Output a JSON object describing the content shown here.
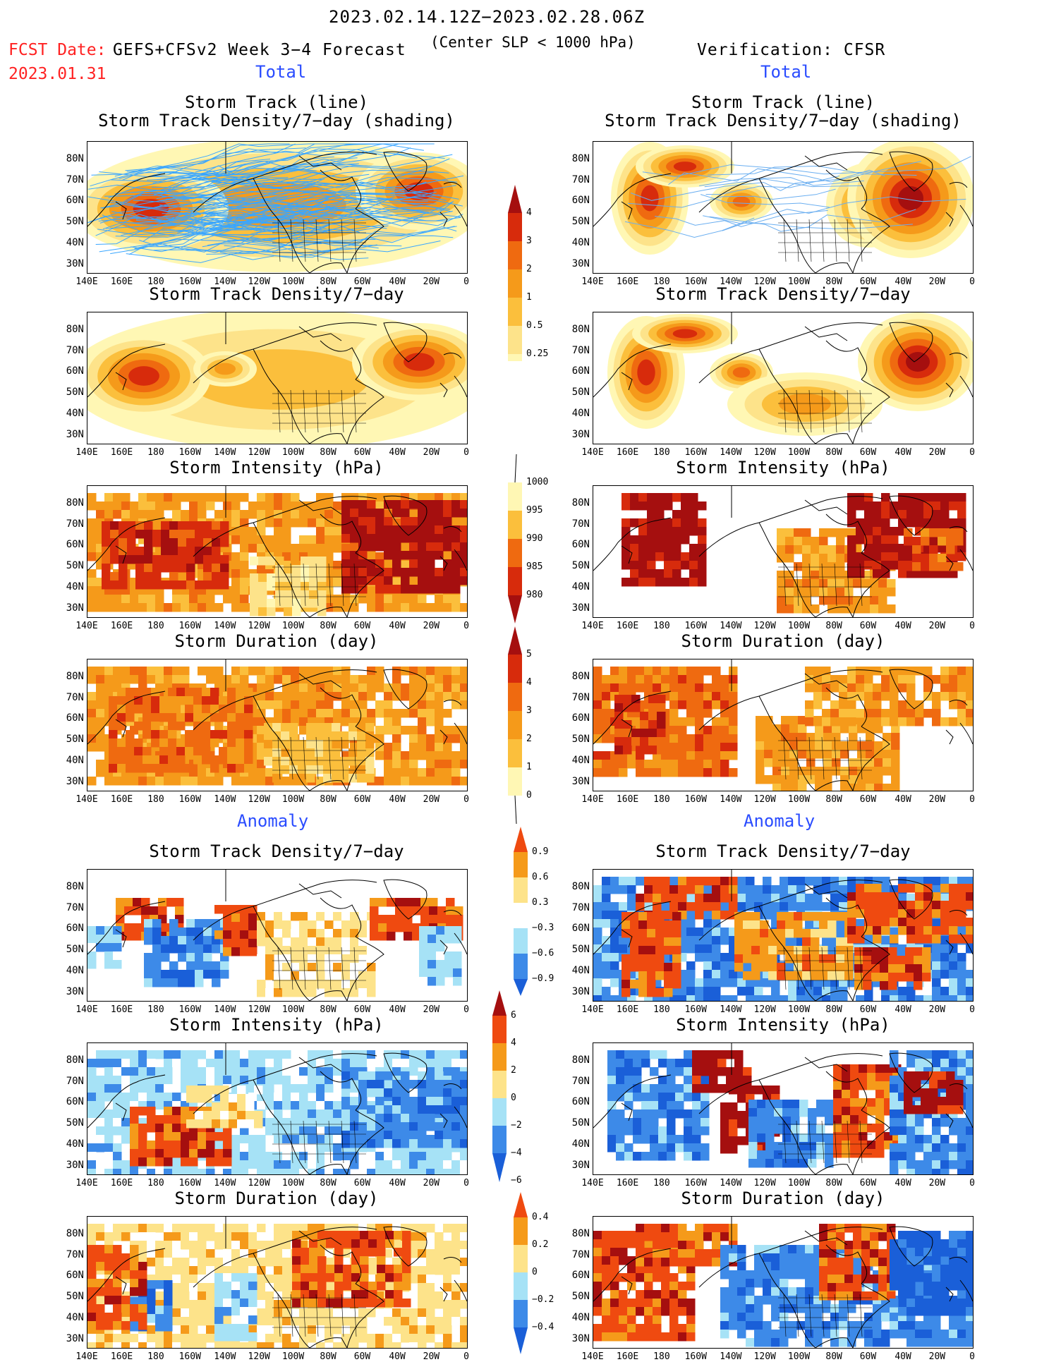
{
  "header": {
    "date_range": "2023.02.14.12Z−2023.02.28.06Z",
    "subtitle": "(Center SLP < 1000 hPa)",
    "fcst_label": "FCST Date:",
    "fcst_date": "2023.01.31",
    "left_title": "GEFS+CFSv2 Week 3−4 Forecast",
    "right_title": "Verification: CFSR"
  },
  "sections": {
    "total": "Total",
    "anomaly": "Anomaly"
  },
  "panel_titles": {
    "p1_line1": "Storm Track (line)",
    "p1_line2": "Storm Track Density/7−day (shading)",
    "p2": "Storm Track Density/7−day",
    "p3": "Storm Intensity (hPa)",
    "p4": "Storm Duration (day)",
    "a1": "Storm Track Density/7−day",
    "a2": "Storm Intensity (hPa)",
    "a3": "Storm Duration (day)"
  },
  "axes": {
    "lat_labels": [
      "80N",
      "70N",
      "60N",
      "50N",
      "40N",
      "30N"
    ],
    "lon_labels": [
      "140E",
      "160E",
      "180",
      "160W",
      "140W",
      "120W",
      "100W",
      "80W",
      "60W",
      "40W",
      "20W",
      "0"
    ]
  },
  "colorbars": {
    "density": [
      "4",
      "3",
      "2",
      "1",
      "0.5",
      "0.25"
    ],
    "intensity": [
      "1000",
      "995",
      "990",
      "985",
      "980"
    ],
    "duration": [
      "5",
      "4",
      "3",
      "2",
      "1",
      "0"
    ],
    "anom_density": [
      "0.9",
      "0.6",
      "0.3",
      "−0.3",
      "−0.6",
      "−0.9"
    ],
    "anom_intensity": [
      "6",
      "4",
      "2",
      "0",
      "−2",
      "−4",
      "−6"
    ],
    "anom_duration": [
      "0.4",
      "0.2",
      "0",
      "−0.2",
      "−0.4"
    ]
  },
  "colors": {
    "warm_scale": [
      "#fff7b4",
      "#fde38a",
      "#fbbf3c",
      "#f59a1a",
      "#ef6a10",
      "#d72b0c",
      "#a50f0f"
    ],
    "anom_scale": [
      "#1a5fd8",
      "#3d8ae8",
      "#a6e2f6",
      "#ffffff",
      "#fde38a",
      "#f59a1a",
      "#ef4a10",
      "#a50f0f"
    ]
  }
}
